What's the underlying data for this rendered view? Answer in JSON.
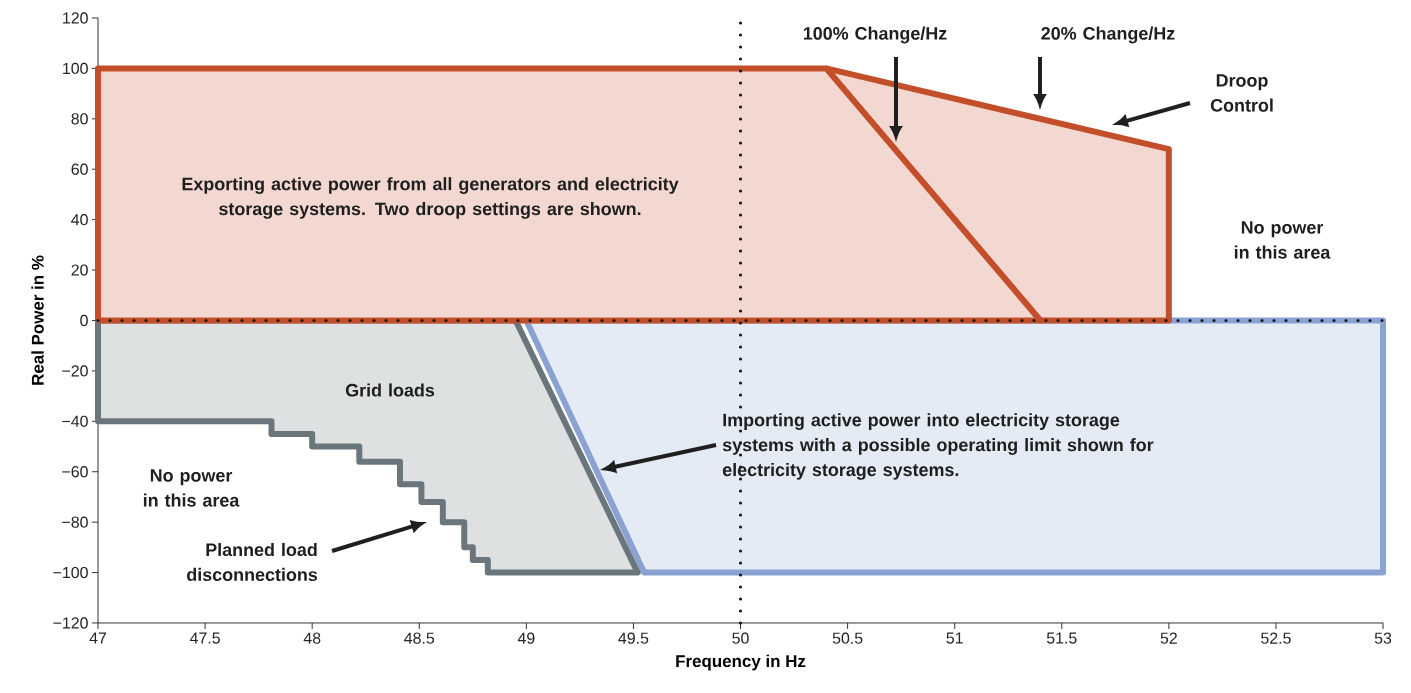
{
  "chart_data": {
    "type": "area",
    "xlabel": "Frequency in Hz",
    "ylabel": "Real Power in %",
    "xlim": [
      47,
      53
    ],
    "xticks": [
      47,
      47.5,
      48,
      48.5,
      49,
      49.5,
      50,
      50.5,
      51,
      51.5,
      52,
      52.5,
      53
    ],
    "ylim": [
      -120,
      120
    ],
    "yticks": [
      {
        "value": -120,
        "label": "−120"
      },
      {
        "value": -100,
        "label": "−100"
      },
      {
        "value": -80,
        "label": "−80"
      },
      {
        "value": -60,
        "label": "−60"
      },
      {
        "value": -40,
        "label": "−40"
      },
      {
        "value": -20,
        "label": "−20"
      },
      0,
      20,
      40,
      60,
      80,
      100,
      120
    ],
    "series": [
      {
        "color": "#8aa2d2",
        "x": [
          49,
          53,
          53,
          49.55,
          49
        ],
        "values": [
          0,
          0,
          -100,
          -100,
          0
        ]
      },
      {
        "color": "#6b767c",
        "x": [
          47,
          48.95,
          49.52,
          48.82,
          48.82,
          48.75,
          48.75,
          48.71,
          48.71,
          48.61,
          48.61,
          48.51,
          48.51,
          48.41,
          48.41,
          48.22,
          48.22,
          48.0,
          48.0,
          47.81,
          47.81,
          47,
          47
        ],
        "values": [
          0,
          0,
          -100,
          -100,
          -95,
          -95,
          -90,
          -90,
          -80,
          -80,
          -72,
          -72,
          -65,
          -65,
          -56,
          -56,
          -50,
          -50,
          -45,
          -45,
          -40,
          -40,
          0
        ]
      },
      {
        "color": "#c24e2a",
        "x": [
          50.4,
          52,
          52,
          51.4,
          50.4
        ],
        "values": [
          100,
          68,
          0,
          0,
          100
        ]
      },
      {
        "color": "#c24e2a",
        "x": [
          47,
          47,
          50.4,
          51.4,
          47
        ],
        "values": [
          0,
          100,
          100,
          0,
          0
        ]
      }
    ],
    "ref_lines": [
      {
        "axis": "x",
        "value": 50,
        "line_style": "dotted",
        "color": "#1a1a1a"
      },
      {
        "axis": "y",
        "value": 0,
        "line_style": "dotted",
        "color": "#1a1a1a"
      }
    ],
    "annotations": [
      "100% Change/Hz",
      "20% Change/Hz",
      "Droop Control",
      "Importing active power into electricity storage systems with a possible operating limit shown for electricity storage systems.",
      "Planned load disconnections",
      "Exporting active power from all generators and electricity storage systems. Two droop settings are shown.",
      "No power in this area",
      "Grid loads",
      "No power in this area"
    ]
  }
}
